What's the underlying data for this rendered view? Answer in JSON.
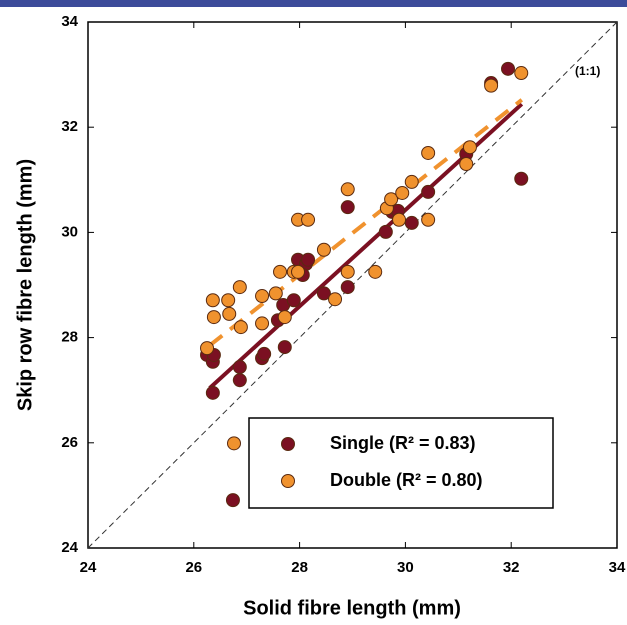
{
  "chart_data": {
    "type": "scatter",
    "x_label": "Solid fibre length (mm)",
    "y_label": "Skip row fibre length (mm)",
    "annotation": "(1:1)",
    "xlim": [
      24,
      34
    ],
    "ylim": [
      24,
      34
    ],
    "xticks": [
      24,
      26,
      28,
      30,
      32,
      34
    ],
    "yticks": [
      24,
      26,
      28,
      30,
      32,
      34
    ],
    "series": [
      {
        "name": "Single (R² = 0.83)",
        "color": "#7b1022",
        "line_style": "solid",
        "x": [
          26.25,
          26.36,
          26.36,
          26.38,
          26.87,
          26.87,
          26.74,
          27.29,
          27.33,
          27.59,
          27.69,
          27.72,
          27.89,
          27.97,
          28.12,
          28.06,
          28.16,
          28.46,
          28.91,
          28.91,
          29.63,
          29.75,
          29.86,
          30.12,
          30.43,
          31.15,
          31.62,
          31.94,
          32.19
        ],
        "values": [
          27.67,
          27.54,
          26.95,
          27.67,
          27.44,
          27.19,
          24.91,
          27.61,
          27.69,
          28.33,
          28.62,
          27.82,
          28.71,
          29.48,
          29.4,
          29.19,
          29.48,
          28.84,
          28.96,
          30.48,
          30.01,
          30.39,
          30.41,
          30.18,
          30.77,
          31.49,
          32.84,
          33.11,
          31.02
        ],
        "fit_x": [
          26.3,
          32.2
        ],
        "fit_y": [
          27.04,
          32.44
        ]
      },
      {
        "name": "Double (R² = 0.80)",
        "color": "#f0922e",
        "line_style": "dashed",
        "x": [
          26.25,
          26.36,
          26.38,
          26.65,
          26.67,
          26.87,
          26.89,
          26.76,
          27.29,
          27.29,
          27.55,
          27.63,
          27.72,
          27.89,
          27.97,
          27.97,
          28.16,
          28.46,
          28.67,
          28.91,
          28.91,
          29.43,
          29.65,
          29.73,
          29.88,
          29.94,
          30.12,
          30.43,
          30.43,
          31.15,
          31.22,
          31.62,
          32.19
        ],
        "values": [
          27.8,
          28.71,
          28.39,
          28.71,
          28.45,
          28.96,
          28.2,
          25.99,
          28.27,
          28.79,
          28.84,
          29.25,
          28.39,
          29.25,
          29.25,
          30.24,
          30.24,
          29.67,
          28.73,
          29.25,
          30.82,
          29.25,
          30.46,
          30.63,
          30.24,
          30.75,
          30.96,
          30.24,
          31.51,
          31.3,
          31.62,
          32.79,
          33.03
        ],
        "fit_x": [
          26.3,
          32.2
        ],
        "fit_y": [
          27.85,
          32.52
        ]
      }
    ]
  }
}
